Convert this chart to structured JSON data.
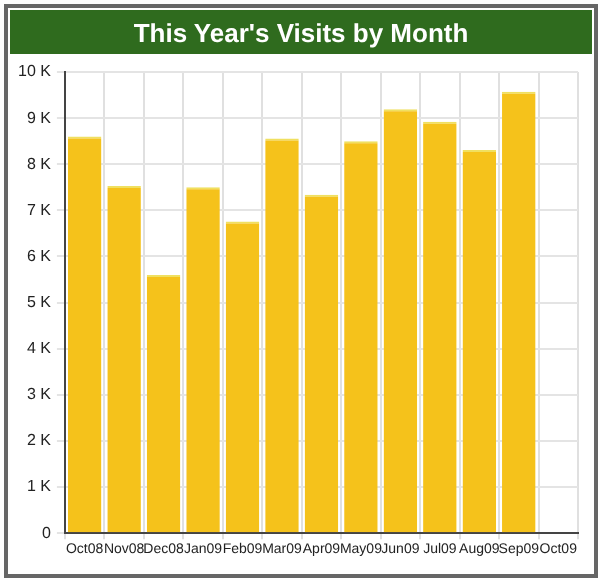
{
  "chart_data": {
    "type": "bar",
    "subtitle": "This Year's Visits by Month",
    "categories": [
      "Oct08",
      "Nov08",
      "Dec08",
      "Jan09",
      "Feb09",
      "Mar09",
      "Apr09",
      "May09",
      "Jun09",
      "Jul09",
      "Aug09",
      "Sep09",
      "Oct09"
    ],
    "values": [
      8.6,
      7.53,
      5.6,
      7.5,
      6.76,
      8.56,
      7.34,
      8.5,
      9.19,
      8.92,
      8.31,
      9.57,
      0
    ],
    "color": "#f5c21b",
    "ylim": [
      0,
      10
    ],
    "yticks": [
      {
        "value": 0,
        "label": "0"
      },
      {
        "value": 1,
        "label": "1 K"
      },
      {
        "value": 2,
        "label": "2 K"
      },
      {
        "value": 3,
        "label": "3 K"
      },
      {
        "value": 4,
        "label": "4 K"
      },
      {
        "value": 5,
        "label": "5 K"
      },
      {
        "value": 6,
        "label": "6 K"
      },
      {
        "value": 7,
        "label": "7 K"
      },
      {
        "value": 8,
        "label": "8 K"
      },
      {
        "value": 9,
        "label": "9 K"
      },
      {
        "value": 10,
        "label": "10 K"
      }
    ],
    "grid": true,
    "legend": false
  }
}
